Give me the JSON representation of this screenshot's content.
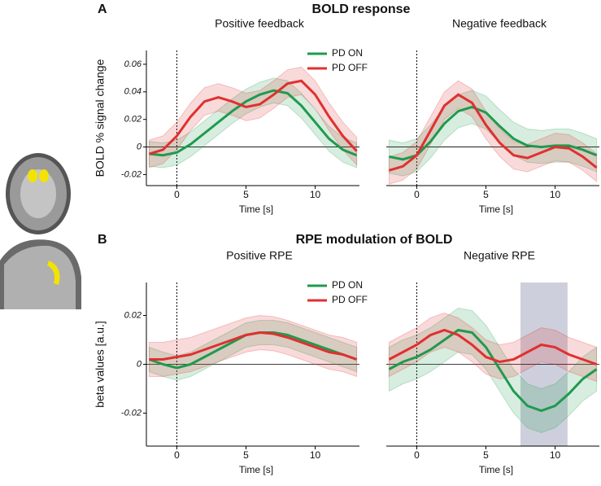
{
  "figure": {
    "panels": [
      {
        "letter": "A",
        "title": "BOLD response"
      },
      {
        "letter": "B",
        "title": "RPE modulation of BOLD"
      }
    ]
  },
  "chart_data": [
    {
      "type": "line",
      "title": "Positive feedback",
      "xlabel": "Time [s]",
      "ylabel": "BOLD % signal change",
      "legend": "upper right",
      "xlim": [
        -2.2,
        13.2
      ],
      "xticks": [
        0,
        5,
        10
      ],
      "ylim": [
        -0.028,
        0.07
      ],
      "yticks": [
        -0.02,
        0,
        0.02,
        0.04,
        0.06
      ],
      "vline": 0,
      "hline": 0,
      "x": [
        -2,
        -1,
        0,
        1,
        2,
        3,
        4,
        5,
        6,
        7,
        8,
        9,
        10,
        11,
        12,
        13
      ],
      "series": [
        {
          "name": "PD ON",
          "color": "#1f9a4e",
          "error": 0.009,
          "values": [
            -0.005,
            -0.006,
            -0.004,
            0.002,
            0.01,
            0.018,
            0.026,
            0.033,
            0.038,
            0.041,
            0.039,
            0.03,
            0.018,
            0.006,
            -0.002,
            -0.006
          ]
        },
        {
          "name": "PD OFF",
          "color": "#e03030",
          "error": 0.01,
          "values": [
            -0.005,
            -0.002,
            0.008,
            0.022,
            0.033,
            0.036,
            0.033,
            0.029,
            0.031,
            0.038,
            0.046,
            0.048,
            0.038,
            0.022,
            0.008,
            -0.003
          ]
        }
      ]
    },
    {
      "type": "line",
      "title": "Negative feedback",
      "xlabel": "Time [s]",
      "xlim": [
        -2.2,
        13.2
      ],
      "xticks": [
        0,
        5,
        10
      ],
      "ylim": [
        -0.028,
        0.07
      ],
      "vline": 0,
      "hline": 0,
      "x": [
        -2,
        -1,
        0,
        1,
        2,
        3,
        4,
        5,
        6,
        7,
        8,
        9,
        10,
        11,
        12,
        13
      ],
      "series": [
        {
          "name": "PD ON",
          "color": "#1f9a4e",
          "error": 0.012,
          "values": [
            -0.007,
            -0.009,
            -0.006,
            0.004,
            0.017,
            0.026,
            0.029,
            0.025,
            0.015,
            0.006,
            0.001,
            0,
            0.001,
            0.001,
            -0.002,
            -0.006
          ]
        },
        {
          "name": "PD OFF",
          "color": "#e03030",
          "error": 0.01,
          "values": [
            -0.017,
            -0.014,
            -0.006,
            0.012,
            0.03,
            0.038,
            0.032,
            0.016,
            0.003,
            -0.006,
            -0.008,
            -0.004,
            0,
            -0.001,
            -0.007,
            -0.015
          ]
        }
      ]
    },
    {
      "type": "line",
      "title": "Positive RPE",
      "xlabel": "Time [s]",
      "ylabel": "beta values [a.u.]",
      "legend": "upper right",
      "xlim": [
        -2.2,
        13.2
      ],
      "xticks": [
        0,
        5,
        10
      ],
      "ylim": [
        -0.0335,
        0.0335
      ],
      "yticks": [
        -0.02,
        0,
        0.02
      ],
      "vline": 0,
      "hline": 0,
      "x": [
        -2,
        -1,
        0,
        1,
        2,
        3,
        4,
        5,
        6,
        7,
        8,
        9,
        10,
        11,
        12,
        13
      ],
      "series": [
        {
          "name": "PD ON",
          "color": "#1f9a4e",
          "error": 0.005,
          "values": [
            0.002,
            0,
            -0.0015,
            0,
            0.003,
            0.006,
            0.009,
            0.012,
            0.013,
            0.013,
            0.012,
            0.01,
            0.008,
            0.006,
            0.004,
            0.002
          ]
        },
        {
          "name": "PD OFF",
          "color": "#e03030",
          "error": 0.007,
          "values": [
            0.002,
            0.002,
            0.003,
            0.004,
            0.006,
            0.008,
            0.01,
            0.012,
            0.013,
            0.0125,
            0.011,
            0.009,
            0.007,
            0.005,
            0.004,
            0.002
          ]
        }
      ]
    },
    {
      "type": "line",
      "title": "Negative RPE",
      "xlabel": "Time [s]",
      "xlim": [
        -2.2,
        13.2
      ],
      "xticks": [
        0,
        5,
        10
      ],
      "ylim": [
        -0.0335,
        0.0335
      ],
      "vline": 0,
      "hline": 0,
      "highlight_x": [
        7.5,
        10.9
      ],
      "highlight_color": "#cdd0dc",
      "x": [
        -2,
        -1,
        0,
        1,
        2,
        3,
        4,
        5,
        6,
        7,
        8,
        9,
        10,
        11,
        12,
        13
      ],
      "series": [
        {
          "name": "PD ON",
          "color": "#1f9a4e",
          "error": 0.009,
          "values": [
            -0.002,
            0.001,
            0.003,
            0.006,
            0.01,
            0.014,
            0.013,
            0.007,
            -0.002,
            -0.011,
            -0.017,
            -0.019,
            -0.017,
            -0.012,
            -0.006,
            -0.002
          ]
        },
        {
          "name": "PD OFF",
          "color": "#e03030",
          "error": 0.007,
          "values": [
            0.002,
            0.005,
            0.008,
            0.012,
            0.014,
            0.012,
            0.008,
            0.003,
            0.001,
            0.002,
            0.005,
            0.008,
            0.007,
            0.004,
            0.002,
            0
          ]
        }
      ]
    }
  ]
}
